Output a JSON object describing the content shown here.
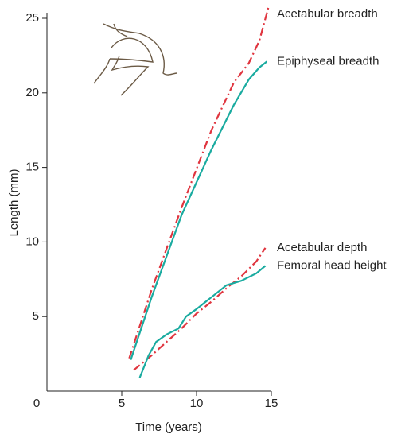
{
  "chart_data": {
    "type": "line",
    "xlabel": "Time (years)",
    "ylabel": "Length (mm)",
    "xlim": [
      0,
      15
    ],
    "xticks": [
      0,
      5,
      10,
      15
    ],
    "ylim": [
      0,
      25
    ],
    "yticks": [
      5,
      10,
      15,
      20,
      25
    ],
    "series": [
      {
        "name": "Acetabular breadth",
        "color": "#e0353f",
        "style": "dashdot",
        "x": [
          5.5,
          7,
          9,
          11,
          12.5,
          13.5,
          14.2,
          14.8
        ],
        "values": [
          2.2,
          6.8,
          12.3,
          17.5,
          20.7,
          22,
          23.5,
          25.7
        ]
      },
      {
        "name": "Epiphyseal breadth",
        "color": "#1aaba0",
        "style": "solid",
        "x": [
          5.6,
          7,
          9,
          11,
          12.5,
          13.5,
          14.2,
          14.7
        ],
        "values": [
          2.1,
          6.3,
          11.8,
          16.2,
          19.2,
          20.9,
          21.7,
          22.1
        ]
      },
      {
        "name": "Acetabular depth",
        "color": "#e0353f",
        "style": "dashdot",
        "x": [
          5.8,
          7,
          8,
          9,
          10,
          11,
          12,
          13,
          14,
          14.6
        ],
        "values": [
          1.4,
          2.4,
          3.3,
          4.2,
          5.2,
          6,
          6.9,
          7.7,
          8.7,
          9.6
        ]
      },
      {
        "name": "Femoral head height",
        "color": "#1aaba0",
        "style": "solid",
        "x": [
          6.2,
          6.8,
          7.3,
          8,
          8.8,
          9.3,
          10,
          11,
          12,
          13,
          14,
          14.6
        ],
        "values": [
          0.9,
          2.4,
          3.3,
          3.8,
          4.2,
          5,
          5.5,
          6.3,
          7.1,
          7.4,
          7.9,
          8.4
        ]
      }
    ]
  }
}
